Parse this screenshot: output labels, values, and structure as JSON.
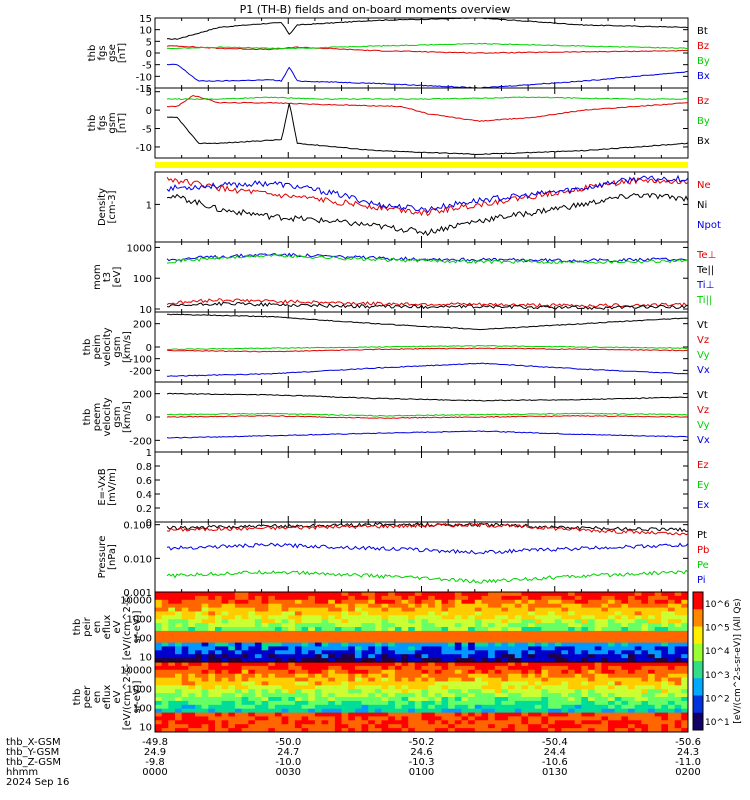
{
  "title": "P1 (TH-B) fields and on-board moments overview",
  "date_label": "2024 Sep 16",
  "ephemeris": {
    "rows": [
      {
        "name": "thb_X-GSM",
        "values": [
          "-49.8",
          "-50.0",
          "-50.2",
          "-50.4",
          "-50.6"
        ]
      },
      {
        "name": "thb_Y-GSM",
        "values": [
          "24.9",
          "24.7",
          "24.6",
          "24.4",
          "24.3"
        ]
      },
      {
        "name": "thb_Z-GSM",
        "values": [
          "-9.8",
          "-10.0",
          "-10.3",
          "-10.6",
          "-11.0"
        ]
      },
      {
        "name": "hhmm",
        "values": [
          "0000",
          "0030",
          "0100",
          "0130",
          "0200"
        ]
      }
    ]
  },
  "colors": {
    "black": "#000000",
    "red": "#e00000",
    "green": "#00d000",
    "blue": "#0000e0",
    "yellow": "#ffff00"
  },
  "chart_data": [
    {
      "id": "fgs_gse",
      "type": "line",
      "ylabel": [
        "thb",
        "fgs",
        "gse",
        "[nT]"
      ],
      "ylim": [
        -15,
        15
      ],
      "yticks": [
        15,
        10,
        5,
        0,
        -5,
        -10,
        -15
      ],
      "series": [
        {
          "name": "Bt",
          "color": "#000000",
          "x": [
            0.02,
            0.1,
            0.18,
            0.22,
            0.235,
            0.25,
            0.4,
            0.6,
            0.8,
            1.0
          ],
          "y": [
            6,
            11,
            12.5,
            13,
            8,
            12,
            14,
            15,
            12,
            11
          ]
        },
        {
          "name": "Bz",
          "color": "#e00000",
          "x": [
            0.02,
            0.1,
            0.2,
            0.25,
            0.4,
            0.6,
            0.8,
            1.0
          ],
          "y": [
            3,
            2,
            1.5,
            2.5,
            1,
            0,
            0.5,
            1
          ]
        },
        {
          "name": "By",
          "color": "#00d000",
          "x": [
            0.02,
            0.1,
            0.2,
            0.25,
            0.4,
            0.6,
            0.8,
            1.0
          ],
          "y": [
            2,
            2.5,
            2,
            2,
            3,
            4,
            3,
            2
          ]
        },
        {
          "name": "Bx",
          "color": "#0000e0",
          "x": [
            0.02,
            0.06,
            0.1,
            0.2,
            0.22,
            0.235,
            0.25,
            0.4,
            0.6,
            0.8,
            1.0
          ],
          "y": [
            -5,
            -12,
            -12,
            -11.5,
            -12,
            -6,
            -12,
            -13,
            -15,
            -12,
            -8
          ]
        }
      ]
    },
    {
      "id": "fgs_gsm",
      "type": "line",
      "ylabel": [
        "thb",
        "fgs",
        "gsm",
        "[nT]"
      ],
      "ylim": [
        -13,
        6
      ],
      "yticks": [
        5,
        0,
        -5,
        -10
      ],
      "series": [
        {
          "name": "Bz",
          "color": "#e00000",
          "x": [
            0.02,
            0.05,
            0.1,
            0.2,
            0.3,
            0.45,
            0.5,
            0.55,
            0.6,
            0.7,
            0.8,
            0.9,
            1.0
          ],
          "y": [
            1,
            4,
            2,
            2,
            1.5,
            1,
            -1,
            -2,
            -3,
            -2,
            0,
            1,
            2
          ]
        },
        {
          "name": "By",
          "color": "#00d000",
          "x": [
            0.02,
            0.1,
            0.2,
            0.3,
            0.5,
            0.7,
            0.9,
            1.0
          ],
          "y": [
            3,
            3,
            3.5,
            3,
            3,
            3.5,
            3,
            3
          ]
        },
        {
          "name": "Bx",
          "color": "#000000",
          "x": [
            0.02,
            0.06,
            0.1,
            0.22,
            0.235,
            0.25,
            0.4,
            0.6,
            0.8,
            1.0
          ],
          "y": [
            -2,
            -9,
            -9,
            -8,
            2,
            -9,
            -11,
            -12,
            -11,
            -9
          ]
        }
      ]
    },
    {
      "id": "density",
      "type": "line",
      "ylabel": [
        "Density",
        "[cm-3]"
      ],
      "ylog": true,
      "ylim": [
        0.2,
        4
      ],
      "yticks": [
        1
      ],
      "series": [
        {
          "name": "Ne",
          "color": "#e00000",
          "x": [
            0.0,
            0.1,
            0.2,
            0.3,
            0.4,
            0.5,
            0.6,
            0.7,
            0.8,
            0.9,
            1.0
          ],
          "y": [
            3,
            2,
            1.5,
            1.2,
            0.9,
            0.7,
            1.0,
            1.4,
            2.0,
            2.8,
            2.5
          ]
        },
        {
          "name": "Ni",
          "color": "#000000",
          "x": [
            0.0,
            0.1,
            0.2,
            0.3,
            0.4,
            0.5,
            0.6,
            0.7,
            0.8,
            0.9,
            1.0
          ],
          "y": [
            1.5,
            0.8,
            0.6,
            0.5,
            0.4,
            0.3,
            0.5,
            0.7,
            1.0,
            1.5,
            1.3
          ]
        },
        {
          "name": "Npot",
          "color": "#0000e0",
          "x": [
            0.0,
            0.2,
            0.4,
            0.5,
            0.6,
            0.7,
            0.8,
            0.9,
            1.0
          ],
          "y": [
            2.0,
            2.5,
            1.0,
            0.8,
            1.2,
            1.5,
            2.0,
            3.0,
            3.0
          ]
        }
      ]
    },
    {
      "id": "temps",
      "type": "line",
      "ylabel": [
        "mom",
        "t3",
        "[eV]"
      ],
      "ylog": true,
      "ylim": [
        8,
        1500
      ],
      "yticks": [
        1000,
        100,
        10
      ],
      "series": [
        {
          "name": "Te⊥",
          "color": "#e00000",
          "x": [
            0.0,
            0.1,
            0.2,
            0.4,
            0.6,
            0.8,
            1.0
          ],
          "y": [
            15,
            20,
            18,
            15,
            14,
            13,
            14
          ]
        },
        {
          "name": "Te||",
          "color": "#000000",
          "x": [
            0.0,
            0.1,
            0.2,
            0.4,
            0.6,
            0.8,
            1.0
          ],
          "y": [
            12,
            15,
            14,
            12,
            12,
            11,
            12
          ]
        },
        {
          "name": "Ti⊥",
          "color": "#0000e0",
          "x": [
            0.0,
            0.1,
            0.2,
            0.4,
            0.6,
            0.8,
            1.0
          ],
          "y": [
            400,
            500,
            600,
            450,
            400,
            380,
            420
          ]
        },
        {
          "name": "Ti||",
          "color": "#00d000",
          "x": [
            0.0,
            0.1,
            0.2,
            0.4,
            0.6,
            0.8,
            1.0
          ],
          "y": [
            350,
            450,
            550,
            400,
            350,
            340,
            370
          ]
        }
      ]
    },
    {
      "id": "peim_vel",
      "type": "line",
      "ylabel": [
        "thb",
        "peim",
        "velocity",
        "gsm",
        "[km/s]"
      ],
      "ylim": [
        -300,
        300
      ],
      "yticks": [
        200,
        0,
        -100,
        -200
      ],
      "series": [
        {
          "name": "Vt",
          "color": "#000000",
          "x": [
            0.0,
            0.2,
            0.4,
            0.6,
            0.8,
            1.0
          ],
          "y": [
            280,
            260,
            200,
            150,
            200,
            250
          ]
        },
        {
          "name": "Vz",
          "color": "#e00000",
          "x": [
            0.0,
            0.2,
            0.4,
            0.6,
            0.8,
            1.0
          ],
          "y": [
            -30,
            -40,
            -20,
            -10,
            -20,
            -30
          ]
        },
        {
          "name": "Vy",
          "color": "#00d000",
          "x": [
            0.0,
            0.2,
            0.4,
            0.6,
            0.8,
            1.0
          ],
          "y": [
            -20,
            -10,
            0,
            10,
            0,
            -10
          ]
        },
        {
          "name": "Vx",
          "color": "#0000e0",
          "x": [
            0.0,
            0.2,
            0.4,
            0.6,
            0.8,
            1.0
          ],
          "y": [
            -250,
            -230,
            -180,
            -140,
            -190,
            -230
          ]
        }
      ]
    },
    {
      "id": "peem_vel",
      "type": "line",
      "ylabel": [
        "thb",
        "peem",
        "velocity",
        "gsm",
        "[km/s]"
      ],
      "ylim": [
        -300,
        300
      ],
      "yticks": [
        200,
        0,
        -200
      ],
      "series": [
        {
          "name": "Vt",
          "color": "#000000",
          "x": [
            0.0,
            0.2,
            0.4,
            0.6,
            0.8,
            1.0
          ],
          "y": [
            200,
            190,
            160,
            140,
            150,
            170
          ]
        },
        {
          "name": "Vz",
          "color": "#e00000",
          "x": [
            0.0,
            0.2,
            0.4,
            0.6,
            0.8,
            1.0
          ],
          "y": [
            0,
            10,
            -10,
            0,
            10,
            0
          ]
        },
        {
          "name": "Vy",
          "color": "#00d000",
          "x": [
            0.0,
            0.2,
            0.4,
            0.6,
            0.8,
            1.0
          ],
          "y": [
            20,
            30,
            10,
            20,
            30,
            20
          ]
        },
        {
          "name": "Vx",
          "color": "#0000e0",
          "x": [
            0.0,
            0.2,
            0.4,
            0.6,
            0.8,
            1.0
          ],
          "y": [
            -180,
            -160,
            -140,
            -120,
            -150,
            -170
          ]
        }
      ]
    },
    {
      "id": "efield",
      "type": "line",
      "ylabel": [
        "E=-VxB",
        "[mV/m]"
      ],
      "ylim": [
        0,
        1
      ],
      "yticks": [
        1.0,
        0.8,
        0.6,
        0.4,
        0.2,
        0.0
      ],
      "series": [
        {
          "name": "Ez",
          "color": "#e00000",
          "x": [],
          "y": []
        },
        {
          "name": "Ey",
          "color": "#00d000",
          "x": [],
          "y": []
        },
        {
          "name": "Ex",
          "color": "#0000e0",
          "x": [],
          "y": []
        }
      ]
    },
    {
      "id": "pressure",
      "type": "line",
      "ylabel": [
        "Pressure",
        "[nPa]"
      ],
      "ylog": true,
      "ylim": [
        0.001,
        0.12
      ],
      "yticks": [
        0.1,
        0.01,
        0.001
      ],
      "yticklabels": [
        "0.100",
        "0.010",
        "0.001"
      ],
      "series": [
        {
          "name": "Pt",
          "color": "#000000",
          "x": [
            0.0,
            0.2,
            0.4,
            0.6,
            0.8,
            1.0
          ],
          "y": [
            0.08,
            0.09,
            0.1,
            0.1,
            0.08,
            0.07
          ]
        },
        {
          "name": "Pb",
          "color": "#e00000",
          "x": [
            0.0,
            0.2,
            0.4,
            0.6,
            0.8,
            1.0
          ],
          "y": [
            0.07,
            0.08,
            0.09,
            0.1,
            0.07,
            0.05
          ]
        },
        {
          "name": "Pe",
          "color": "#00d000",
          "x": [
            0.0,
            0.2,
            0.4,
            0.6,
            0.8,
            1.0
          ],
          "y": [
            0.003,
            0.004,
            0.003,
            0.002,
            0.003,
            0.004
          ]
        },
        {
          "name": "Pi",
          "color": "#0000e0",
          "x": [
            0.0,
            0.2,
            0.4,
            0.6,
            0.8,
            1.0
          ],
          "y": [
            0.02,
            0.025,
            0.02,
            0.015,
            0.02,
            0.025
          ]
        }
      ]
    },
    {
      "id": "peir_spec",
      "type": "heatmap",
      "ylabel": [
        "thb",
        "peir",
        "en",
        "eflux",
        "eV",
        "[eV/(cm^2-s-",
        "sr-eV)]"
      ],
      "ylog": true,
      "ylim": [
        5,
        25000
      ],
      "yticks": [
        10000,
        1000,
        100,
        10
      ]
    },
    {
      "id": "peer_spec",
      "type": "heatmap",
      "ylabel": [
        "thb",
        "peer",
        "en",
        "eflux",
        "eV",
        "[eV/(cm^2-s-",
        "sr-eV)]"
      ],
      "ylog": true,
      "ylim": [
        5,
        25000
      ],
      "yticks": [
        10000,
        1000,
        100,
        10
      ]
    }
  ],
  "colorbar": {
    "label": "[eV/(cm^2-s-sr-eV)] (All Qs)",
    "ticks": [
      "10^6",
      "10^5",
      "10^4",
      "10^3",
      "10^2",
      "10^1"
    ]
  }
}
